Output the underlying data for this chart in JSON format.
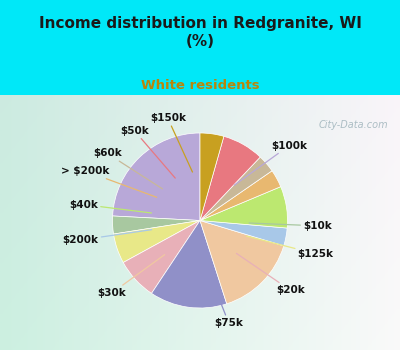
{
  "title": "Income distribution in Redgranite, WI\n(%)",
  "subtitle": "White residents",
  "title_color": "#1a1a1a",
  "subtitle_color": "#b8860b",
  "bg_cyan": "#00e8f8",
  "watermark": "City-Data.com",
  "slices": [
    {
      "label": "$100k",
      "value": 22,
      "color": "#b8a8d8"
    },
    {
      "label": "$10k",
      "value": 3,
      "color": "#a8c8a0"
    },
    {
      "label": "$125k",
      "value": 5,
      "color": "#e8e888"
    },
    {
      "label": "$20k",
      "value": 7,
      "color": "#e8b0b8"
    },
    {
      "label": "$75k",
      "value": 13,
      "color": "#9090c8"
    },
    {
      "label": "$30k",
      "value": 14,
      "color": "#f0c8a0"
    },
    {
      "label": "$200k",
      "value": 3,
      "color": "#a8c8e8"
    },
    {
      "label": "$40k",
      "value": 7,
      "color": "#bce870"
    },
    {
      "label": "> $200k",
      "value": 3,
      "color": "#e8b870"
    },
    {
      "label": "$60k",
      "value": 3,
      "color": "#c8b898"
    },
    {
      "label": "$50k",
      "value": 7,
      "color": "#e87880"
    },
    {
      "label": "$150k",
      "value": 4,
      "color": "#c8a020"
    }
  ],
  "label_fontsize": 7.5,
  "label_color": "#111111",
  "chart_bg_colors": [
    "#d0ede8",
    "#e8f5f0",
    "#f0faf8"
  ],
  "chart_right_bg": "#deeef8"
}
